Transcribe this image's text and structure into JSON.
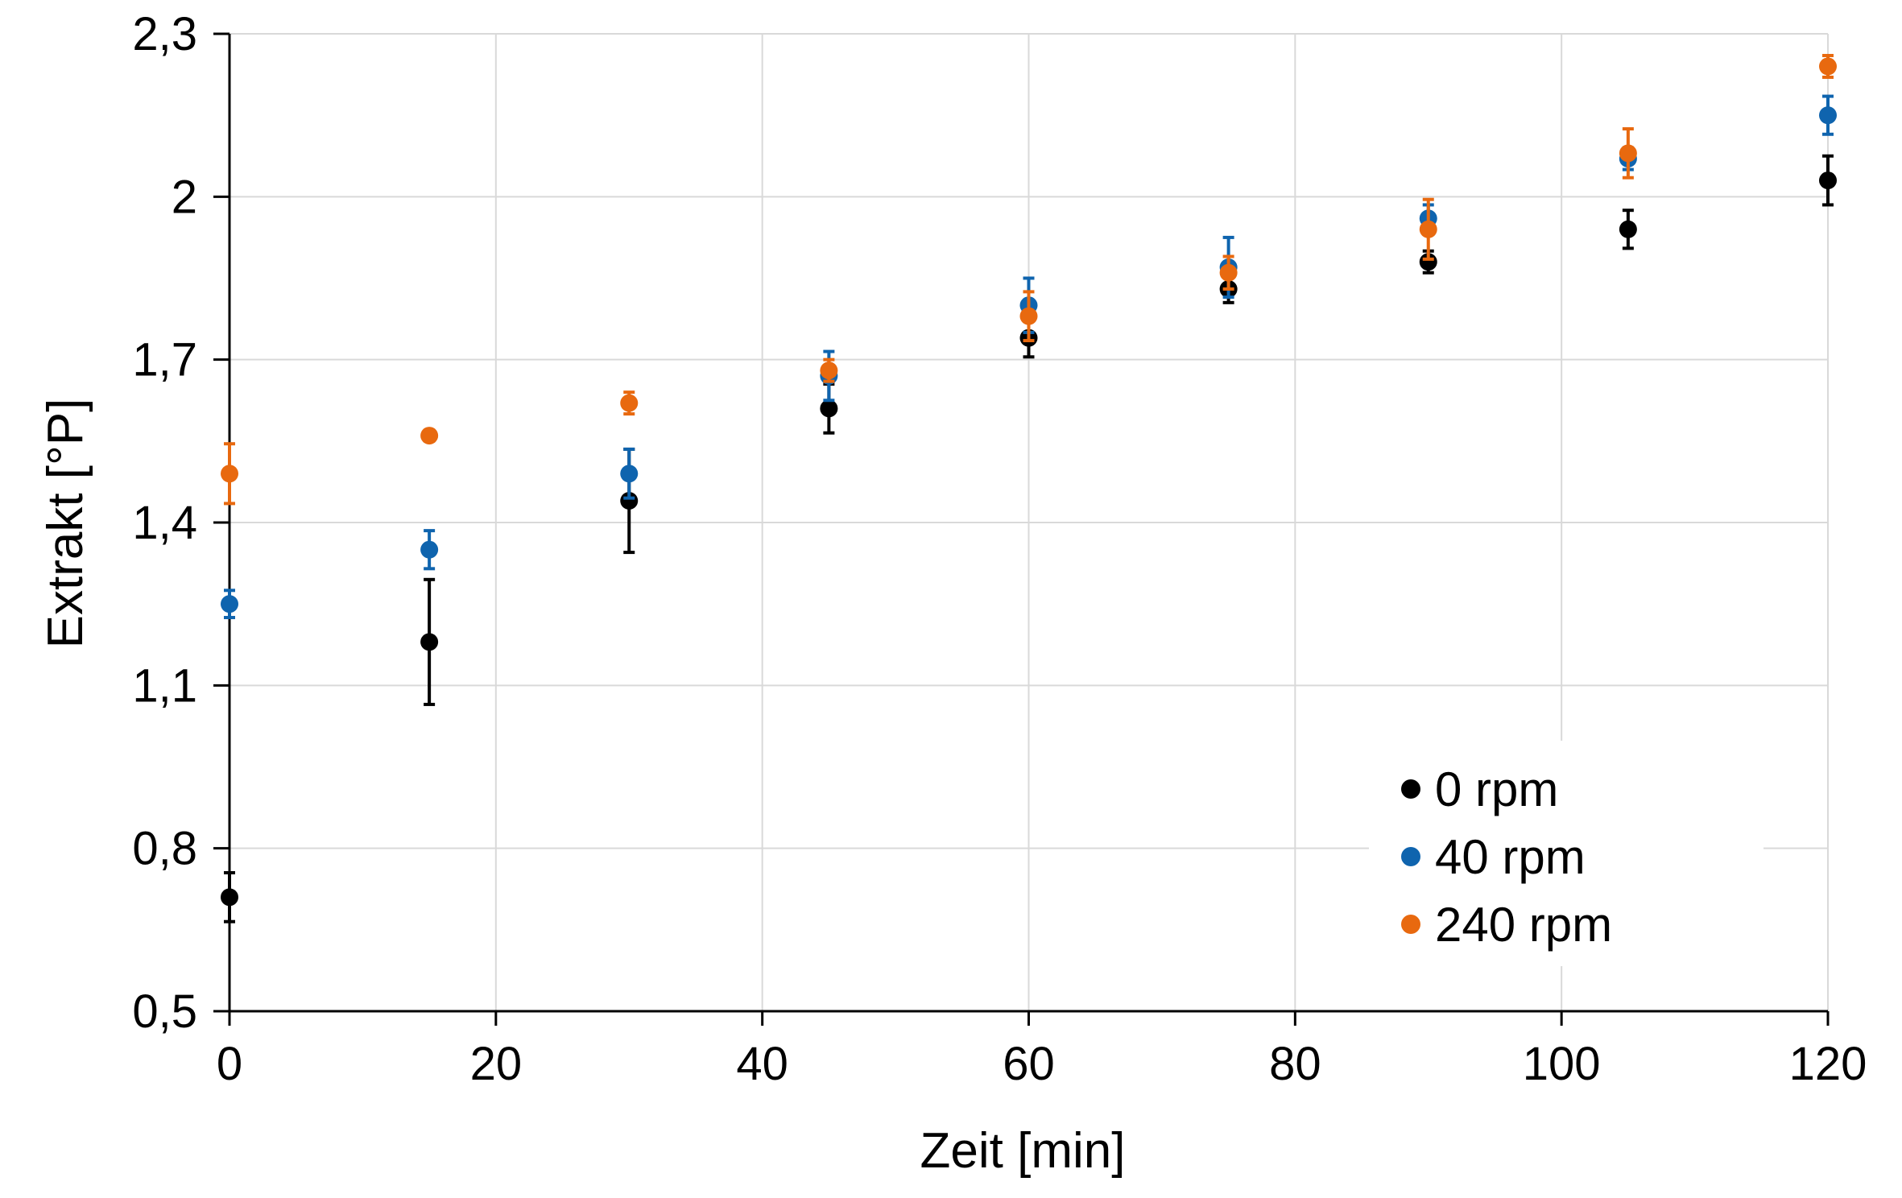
{
  "chart_data": {
    "type": "scatter",
    "title": "",
    "xlabel": "Zeit [min]",
    "ylabel": "Extrakt [°P]",
    "xlim": [
      0,
      120
    ],
    "ylim": [
      0.5,
      2.3
    ],
    "x_ticks": [
      0,
      20,
      40,
      60,
      80,
      100,
      120
    ],
    "x_tick_labels": [
      "0",
      "20",
      "40",
      "60",
      "80",
      "100",
      "120"
    ],
    "y_ticks": [
      0.5,
      0.8,
      1.1,
      1.4,
      1.7,
      2.0,
      2.3
    ],
    "y_tick_labels": [
      "0,5",
      "0,8",
      "1,1",
      "1,4",
      "1,7",
      "2",
      "2,3"
    ],
    "grid": true,
    "error_bars": true,
    "legend_position": "bottom-right",
    "series": [
      {
        "name": "0 rpm",
        "color": "#000000",
        "x": [
          0,
          15,
          30,
          45,
          60,
          75,
          90,
          105,
          120
        ],
        "y": [
          0.71,
          1.18,
          1.44,
          1.61,
          1.74,
          1.83,
          1.88,
          1.94,
          2.03
        ],
        "err": [
          0.045,
          0.115,
          0.095,
          0.045,
          0.035,
          0.025,
          0.02,
          0.035,
          0.045
        ]
      },
      {
        "name": "40 rpm",
        "color": "#0F64AE",
        "x": [
          0,
          15,
          30,
          45,
          60,
          75,
          90,
          105,
          120
        ],
        "y": [
          1.25,
          1.35,
          1.49,
          1.67,
          1.8,
          1.87,
          1.96,
          2.07,
          2.15
        ],
        "err": [
          0.025,
          0.035,
          0.045,
          0.045,
          0.05,
          0.055,
          0.025,
          0.02,
          0.035
        ]
      },
      {
        "name": "240 rpm",
        "color": "#E8690F",
        "x": [
          0,
          15,
          30,
          45,
          60,
          75,
          90,
          105,
          120
        ],
        "y": [
          1.49,
          1.56,
          1.62,
          1.68,
          1.78,
          1.86,
          1.94,
          2.08,
          2.24
        ],
        "err": [
          0.055,
          0.01,
          0.02,
          0.02,
          0.045,
          0.03,
          0.055,
          0.045,
          0.02
        ]
      }
    ]
  }
}
